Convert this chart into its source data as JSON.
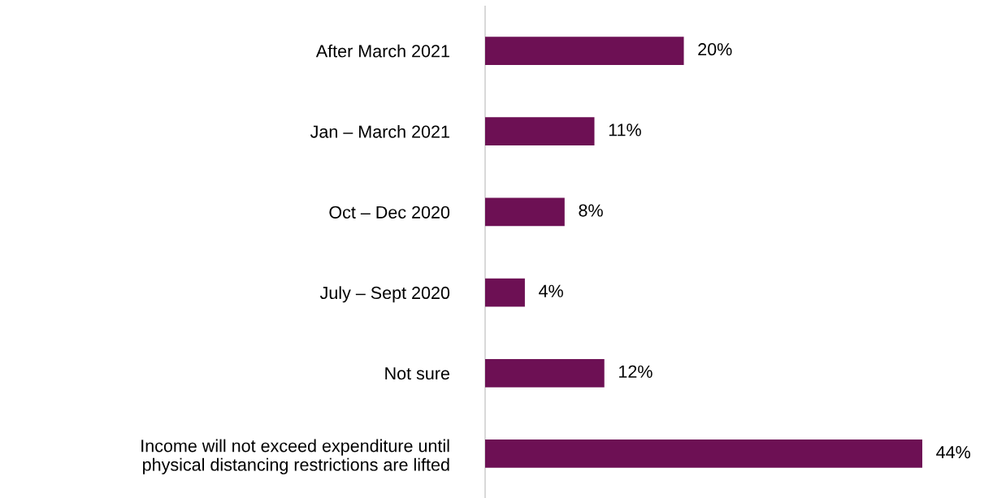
{
  "chart_data": {
    "type": "bar",
    "orientation": "horizontal",
    "categories": [
      "After March 2021",
      "Jan – March 2021",
      "Oct – Dec 2020",
      "July – Sept 2020",
      "Not sure",
      "Income will not exceed expenditure until\nphysical distancing restrictions are lifted"
    ],
    "values": [
      20,
      11,
      8,
      4,
      12,
      44
    ],
    "value_labels": [
      "20%",
      "11%",
      "8%",
      "4%",
      "12%",
      "44%"
    ],
    "color": "#6d1054",
    "grid": false,
    "legend": false
  }
}
